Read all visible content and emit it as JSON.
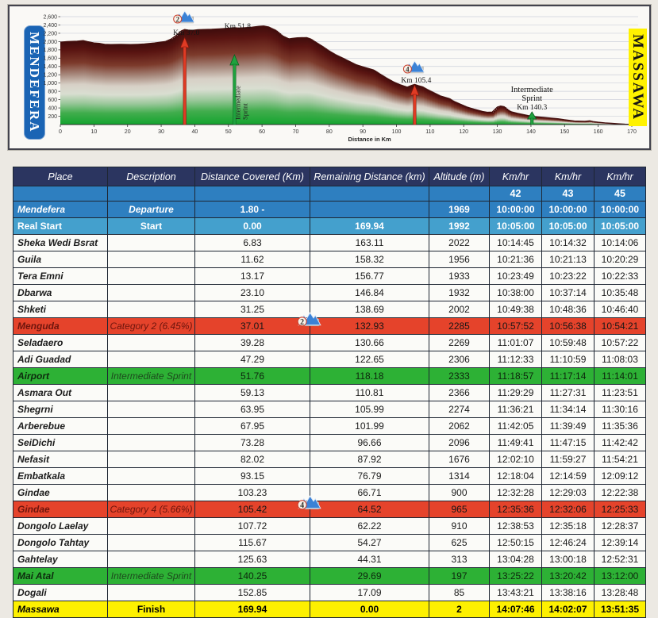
{
  "colors": {
    "climb_red": "#e5432b",
    "sprint_green": "#2db135",
    "finish_yellow": "#fdf000",
    "header_navy": "#2b3560",
    "row_blue": "#2e7fc0",
    "row_lightblue": "#44a0cd",
    "profile_maroon": "#4a100e",
    "profile_green": "#13a42e",
    "badge_blue": "#1a64b4",
    "badge_yellow": "#fff200"
  },
  "chart_data": {
    "type": "area",
    "xlabel": "Distance in Km",
    "xlim": [
      0,
      170
    ],
    "ylim": [
      0,
      2600
    ],
    "x_tick_step": 10,
    "y_tick_step": 200,
    "grid": "horizontal",
    "start_label": "MENDEFERA",
    "end_label": "MASSAWA",
    "profile": [
      [
        0,
        1985
      ],
      [
        2,
        2000
      ],
      [
        5,
        2010
      ],
      [
        6.8,
        2022
      ],
      [
        8,
        2000
      ],
      [
        10,
        1965
      ],
      [
        11.6,
        1956
      ],
      [
        13.2,
        1933
      ],
      [
        15,
        1928
      ],
      [
        18,
        1930
      ],
      [
        21,
        1928
      ],
      [
        23.1,
        1932
      ],
      [
        25,
        1940
      ],
      [
        28,
        1965
      ],
      [
        31.3,
        2002
      ],
      [
        33,
        2060
      ],
      [
        34.5,
        2150
      ],
      [
        36,
        2255
      ],
      [
        37,
        2290
      ],
      [
        38,
        2275
      ],
      [
        39.3,
        2269
      ],
      [
        41,
        2285
      ],
      [
        43,
        2290
      ],
      [
        45,
        2295
      ],
      [
        47.3,
        2306
      ],
      [
        49,
        2315
      ],
      [
        51.8,
        2333
      ],
      [
        53,
        2325
      ],
      [
        55,
        2335
      ],
      [
        57,
        2345
      ],
      [
        59.1,
        2366
      ],
      [
        60.5,
        2375
      ],
      [
        62,
        2350
      ],
      [
        63,
        2310
      ],
      [
        64,
        2274
      ],
      [
        65,
        2210
      ],
      [
        66,
        2140
      ],
      [
        68,
        2062
      ],
      [
        69,
        2075
      ],
      [
        70.5,
        2090
      ],
      [
        73.3,
        2096
      ],
      [
        74.5,
        2060
      ],
      [
        76,
        1980
      ],
      [
        78,
        1880
      ],
      [
        80,
        1770
      ],
      [
        82,
        1676
      ],
      [
        84,
        1600
      ],
      [
        86,
        1520
      ],
      [
        88,
        1440
      ],
      [
        90,
        1390
      ],
      [
        93.2,
        1314
      ],
      [
        95,
        1220
      ],
      [
        97,
        1120
      ],
      [
        99,
        1030
      ],
      [
        101,
        960
      ],
      [
        103.2,
        900
      ],
      [
        104.5,
        945
      ],
      [
        105.4,
        965
      ],
      [
        106.5,
        935
      ],
      [
        107.7,
        910
      ],
      [
        109,
        850
      ],
      [
        111,
        770
      ],
      [
        113,
        690
      ],
      [
        115.7,
        625
      ],
      [
        117,
        560
      ],
      [
        119,
        490
      ],
      [
        121,
        420
      ],
      [
        123,
        370
      ],
      [
        125.6,
        313
      ],
      [
        127,
        295
      ],
      [
        128.5,
        300
      ],
      [
        130,
        420
      ],
      [
        131,
        445
      ],
      [
        132,
        430
      ],
      [
        133,
        360
      ],
      [
        134,
        310
      ],
      [
        136,
        270
      ],
      [
        138,
        235
      ],
      [
        140.3,
        197
      ],
      [
        142,
        185
      ],
      [
        144,
        170
      ],
      [
        146,
        155
      ],
      [
        148,
        140
      ],
      [
        150,
        115
      ],
      [
        152.9,
        85
      ],
      [
        154,
        82
      ],
      [
        156,
        78
      ],
      [
        157.5,
        90
      ],
      [
        158.5,
        70
      ],
      [
        160,
        55
      ],
      [
        162,
        40
      ],
      [
        164,
        28
      ],
      [
        166,
        18
      ],
      [
        168,
        8
      ],
      [
        169.9,
        3
      ]
    ],
    "markers": [
      {
        "km": 37.0,
        "kind": "climb",
        "category": "2",
        "label": "Km 37.0"
      },
      {
        "km": 51.8,
        "kind": "sprint",
        "label": "Km 51.8",
        "text": "Intermediate Sprint"
      },
      {
        "km": 105.4,
        "kind": "climb",
        "category": "4",
        "label": "Km 105.4"
      },
      {
        "km": 140.3,
        "kind": "sprint",
        "label": "Km 140.3",
        "text": "Intermediate Sprint"
      }
    ]
  },
  "table": {
    "columns": [
      "Place",
      "Description",
      "Distance Covered (Km)",
      "Remaining Distance (km)",
      "Altitude (m)",
      "Km/hr",
      "Km/hr",
      "Km/hr"
    ],
    "speeds": [
      "42",
      "43",
      "45"
    ],
    "rows": [
      {
        "place": "Mendefera",
        "desc": "Departure",
        "dist": "1.80 -",
        "rem": "",
        "alt": "1969",
        "times": [
          "10:00:00",
          "10:00:00",
          "10:00:00"
        ],
        "style": "blue"
      },
      {
        "place": "Real Start",
        "desc": "Start",
        "dist": "0.00",
        "rem": "169.94",
        "alt": "1992",
        "times": [
          "10:05:00",
          "10:05:00",
          "10:05:00"
        ],
        "style": "lightblue"
      },
      {
        "place": "Sheka Wedi Bsrat",
        "desc": "",
        "dist": "6.83",
        "rem": "163.11",
        "alt": "2022",
        "times": [
          "10:14:45",
          "10:14:32",
          "10:14:06"
        ],
        "style": "white"
      },
      {
        "place": "Guila",
        "desc": "",
        "dist": "11.62",
        "rem": "158.32",
        "alt": "1956",
        "times": [
          "10:21:36",
          "10:21:13",
          "10:20:29"
        ],
        "style": "white"
      },
      {
        "place": "Tera Emni",
        "desc": "",
        "dist": "13.17",
        "rem": "156.77",
        "alt": "1933",
        "times": [
          "10:23:49",
          "10:23:22",
          "10:22:33"
        ],
        "style": "white"
      },
      {
        "place": "Dbarwa",
        "desc": "",
        "dist": "23.10",
        "rem": "146.84",
        "alt": "1932",
        "times": [
          "10:38:00",
          "10:37:14",
          "10:35:48"
        ],
        "style": "white"
      },
      {
        "place": "Shketi",
        "desc": "",
        "dist": "31.25",
        "rem": "138.69",
        "alt": "2002",
        "times": [
          "10:49:38",
          "10:48:36",
          "10:46:40"
        ],
        "style": "white"
      },
      {
        "place": "Menguda",
        "desc": "Category 2 (6.45%)",
        "dist": "37.01",
        "rem": "132.93",
        "alt": "2285",
        "times": [
          "10:57:52",
          "10:56:38",
          "10:54:21"
        ],
        "style": "red",
        "icon": "2"
      },
      {
        "place": "Seladaero",
        "desc": "",
        "dist": "39.28",
        "rem": "130.66",
        "alt": "2269",
        "times": [
          "11:01:07",
          "10:59:48",
          "10:57:22"
        ],
        "style": "white"
      },
      {
        "place": "Adi Guadad",
        "desc": "",
        "dist": "47.29",
        "rem": "122.65",
        "alt": "2306",
        "times": [
          "11:12:33",
          "11:10:59",
          "11:08:03"
        ],
        "style": "white"
      },
      {
        "place": "Airport",
        "desc": "Intermediate Sprint",
        "dist": "51.76",
        "rem": "118.18",
        "alt": "2333",
        "times": [
          "11:18:57",
          "11:17:14",
          "11:14:01"
        ],
        "style": "green"
      },
      {
        "place": "Asmara Out",
        "desc": "",
        "dist": "59.13",
        "rem": "110.81",
        "alt": "2366",
        "times": [
          "11:29:29",
          "11:27:31",
          "11:23:51"
        ],
        "style": "white"
      },
      {
        "place": "Shegrni",
        "desc": "",
        "dist": "63.95",
        "rem": "105.99",
        "alt": "2274",
        "times": [
          "11:36:21",
          "11:34:14",
          "11:30:16"
        ],
        "style": "white"
      },
      {
        "place": "Arberebue",
        "desc": "",
        "dist": "67.95",
        "rem": "101.99",
        "alt": "2062",
        "times": [
          "11:42:05",
          "11:39:49",
          "11:35:36"
        ],
        "style": "white"
      },
      {
        "place": "SeiDichi",
        "desc": "",
        "dist": "73.28",
        "rem": "96.66",
        "alt": "2096",
        "times": [
          "11:49:41",
          "11:47:15",
          "11:42:42"
        ],
        "style": "white"
      },
      {
        "place": "Nefasit",
        "desc": "",
        "dist": "82.02",
        "rem": "87.92",
        "alt": "1676",
        "times": [
          "12:02:10",
          "11:59:27",
          "11:54:21"
        ],
        "style": "white"
      },
      {
        "place": "Embatkala",
        "desc": "",
        "dist": "93.15",
        "rem": "76.79",
        "alt": "1314",
        "times": [
          "12:18:04",
          "12:14:59",
          "12:09:12"
        ],
        "style": "white"
      },
      {
        "place": "Gindae",
        "desc": "",
        "dist": "103.23",
        "rem": "66.71",
        "alt": "900",
        "times": [
          "12:32:28",
          "12:29:03",
          "12:22:38"
        ],
        "style": "white"
      },
      {
        "place": "Gindae",
        "desc": "Category 4 (5.66%)",
        "dist": "105.42",
        "rem": "64.52",
        "alt": "965",
        "times": [
          "12:35:36",
          "12:32:06",
          "12:25:33"
        ],
        "style": "red",
        "icon": "4"
      },
      {
        "place": "Dongolo Laelay",
        "desc": "",
        "dist": "107.72",
        "rem": "62.22",
        "alt": "910",
        "times": [
          "12:38:53",
          "12:35:18",
          "12:28:37"
        ],
        "style": "white"
      },
      {
        "place": "Dongolo Tahtay",
        "desc": "",
        "dist": "115.67",
        "rem": "54.27",
        "alt": "625",
        "times": [
          "12:50:15",
          "12:46:24",
          "12:39:14"
        ],
        "style": "white"
      },
      {
        "place": "Gahtelay",
        "desc": "",
        "dist": "125.63",
        "rem": "44.31",
        "alt": "313",
        "times": [
          "13:04:28",
          "13:00:18",
          "12:52:31"
        ],
        "style": "white"
      },
      {
        "place": "Mai Atal",
        "desc": "Intermediate Sprint",
        "dist": "140.25",
        "rem": "29.69",
        "alt": "197",
        "times": [
          "13:25:22",
          "13:20:42",
          "13:12:00"
        ],
        "style": "green"
      },
      {
        "place": "Dogali",
        "desc": "",
        "dist": "152.85",
        "rem": "17.09",
        "alt": "85",
        "times": [
          "13:43:21",
          "13:38:16",
          "13:28:48"
        ],
        "style": "white"
      },
      {
        "place": "Massawa",
        "desc": "Finish",
        "dist": "169.94",
        "rem": "0.00",
        "alt": "2",
        "times": [
          "14:07:46",
          "14:02:07",
          "13:51:35"
        ],
        "style": "yellow"
      }
    ]
  }
}
